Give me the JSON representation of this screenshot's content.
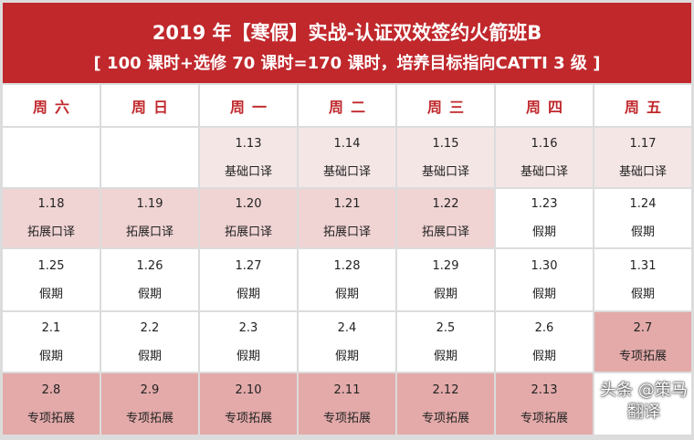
{
  "header": {
    "title": "2019 年【寒假】实战-认证双效签约火箭班B",
    "subtitle": "[ 100 课时+选修 70 课时=170 课时，培养目标指向CATTI 3 级 ]"
  },
  "days": [
    "周六",
    "周日",
    "周一",
    "周二",
    "周三",
    "周四",
    "周五"
  ],
  "colors": {
    "header": "#c0282c",
    "light": "#f5e6e6",
    "mid": "#f0d3d3",
    "dark": "#e3aaa9"
  },
  "rows": [
    [
      {
        "date": "",
        "label": "",
        "shade": ""
      },
      {
        "date": "",
        "label": "",
        "shade": ""
      },
      {
        "date": "1.13",
        "label": "基础口译",
        "shade": "light"
      },
      {
        "date": "1.14",
        "label": "基础口译",
        "shade": "light"
      },
      {
        "date": "1.15",
        "label": "基础口译",
        "shade": "light"
      },
      {
        "date": "1.16",
        "label": "基础口译",
        "shade": "light"
      },
      {
        "date": "1.17",
        "label": "基础口译",
        "shade": "light"
      }
    ],
    [
      {
        "date": "1.18",
        "label": "拓展口译",
        "shade": "mid"
      },
      {
        "date": "1.19",
        "label": "拓展口译",
        "shade": "mid"
      },
      {
        "date": "1.20",
        "label": "拓展口译",
        "shade": "mid"
      },
      {
        "date": "1.21",
        "label": "拓展口译",
        "shade": "mid"
      },
      {
        "date": "1.22",
        "label": "拓展口译",
        "shade": "mid"
      },
      {
        "date": "1.23",
        "label": "假期",
        "shade": ""
      },
      {
        "date": "1.24",
        "label": "假期",
        "shade": ""
      }
    ],
    [
      {
        "date": "1.25",
        "label": "假期",
        "shade": ""
      },
      {
        "date": "1.26",
        "label": "假期",
        "shade": ""
      },
      {
        "date": "1.27",
        "label": "假期",
        "shade": ""
      },
      {
        "date": "1.28",
        "label": "假期",
        "shade": ""
      },
      {
        "date": "1.29",
        "label": "假期",
        "shade": ""
      },
      {
        "date": "1.30",
        "label": "假期",
        "shade": ""
      },
      {
        "date": "1.31",
        "label": "假期",
        "shade": ""
      }
    ],
    [
      {
        "date": "2.1",
        "label": "假期",
        "shade": ""
      },
      {
        "date": "2.2",
        "label": "假期",
        "shade": ""
      },
      {
        "date": "2.3",
        "label": "假期",
        "shade": ""
      },
      {
        "date": "2.4",
        "label": "假期",
        "shade": ""
      },
      {
        "date": "2.5",
        "label": "假期",
        "shade": ""
      },
      {
        "date": "2.6",
        "label": "假期",
        "shade": ""
      },
      {
        "date": "2.7",
        "label": "专项拓展",
        "shade": "dark"
      }
    ],
    [
      {
        "date": "2.8",
        "label": "专项拓展",
        "shade": "dark"
      },
      {
        "date": "2.9",
        "label": "专项拓展",
        "shade": "dark"
      },
      {
        "date": "2.10",
        "label": "专项拓展",
        "shade": "dark"
      },
      {
        "date": "2.11",
        "label": "专项拓展",
        "shade": "dark"
      },
      {
        "date": "2.12",
        "label": "专项拓展",
        "shade": "dark"
      },
      {
        "date": "2.13",
        "label": "专项拓展",
        "shade": "dark"
      },
      {
        "date": "",
        "label": "",
        "shade": ""
      }
    ]
  ],
  "watermark": "头条 @策马翻译"
}
